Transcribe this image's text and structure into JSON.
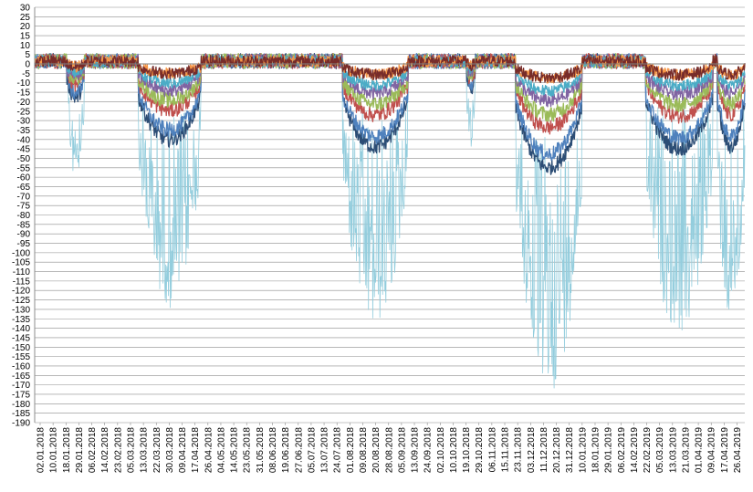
{
  "chart_data": {
    "type": "line",
    "title": "",
    "xlabel": "",
    "ylabel": "",
    "ylim": [
      -190,
      30
    ],
    "ytick_step": 5,
    "grid": true,
    "legend": "none",
    "x_range": [
      "2018-01-02",
      "2019-05-04"
    ],
    "categories": [
      "02.01.2018",
      "10.01.2018",
      "18.01.2018",
      "29.01.2018",
      "06.02.2018",
      "14.02.2018",
      "23.02.2018",
      "05.03.2018",
      "13.03.2018",
      "22.03.2018",
      "30.03.2018",
      "09.04.2018",
      "17.04.2018",
      "26.04.2018",
      "04.05.2018",
      "14.05.2018",
      "23.05.2018",
      "31.05.2018",
      "08.06.2018",
      "19.06.2018",
      "27.06.2018",
      "05.07.2018",
      "13.07.2018",
      "24.07.2018",
      "01.08.2018",
      "09.08.2018",
      "20.08.2018",
      "28.08.2018",
      "05.09.2018",
      "13.09.2018",
      "24.09.2018",
      "02.10.2018",
      "10.10.2018",
      "19.10.2018",
      "29.10.2018",
      "06.11.2018",
      "15.11.2018",
      "23.11.2018",
      "03.12.2018",
      "11.12.2018",
      "20.12.2018",
      "31.12.2018",
      "10.01.2019",
      "18.01.2019",
      "29.01.2019",
      "06.02.2019",
      "14.02.2019",
      "22.02.2019",
      "05.03.2019",
      "13.03.2019",
      "21.03.2019",
      "01.04.2019",
      "09.04.2019",
      "17.04.2019",
      "26.04.2019"
    ],
    "series": [
      {
        "color": "#4f81bd",
        "depth": 0.28,
        "noise": 4
      },
      {
        "color": "#c0504d",
        "depth": 0.2,
        "noise": 4
      },
      {
        "color": "#9bbb59",
        "depth": 0.16,
        "noise": 4
      },
      {
        "color": "#8064a2",
        "depth": 0.12,
        "noise": 3.5
      },
      {
        "color": "#4bacc6",
        "depth": 0.09,
        "noise": 3
      },
      {
        "color": "#f79646",
        "depth": 0.05,
        "noise": 3
      },
      {
        "color": "#2c4d75",
        "depth": 0.32,
        "noise": 4
      },
      {
        "color": "#772c2a",
        "depth": 0.05,
        "noise": 3
      },
      {
        "color": "#93cddd",
        "depth": 1.0,
        "noise": 6
      }
    ],
    "cold_periods": [
      {
        "start": "2018-01-24",
        "end": "2018-02-05",
        "min": -60
      },
      {
        "start": "2018-03-14",
        "end": "2018-04-26",
        "min": -130
      },
      {
        "start": "2018-08-01",
        "end": "2018-09-15",
        "min": -142
      },
      {
        "start": "2018-10-25",
        "end": "2018-10-31",
        "min": -45
      },
      {
        "start": "2018-11-28",
        "end": "2019-01-12",
        "min": -176
      },
      {
        "start": "2019-02-25",
        "end": "2019-04-12",
        "min": -145
      },
      {
        "start": "2019-04-15",
        "end": "2019-05-04",
        "min": -142
      }
    ]
  }
}
